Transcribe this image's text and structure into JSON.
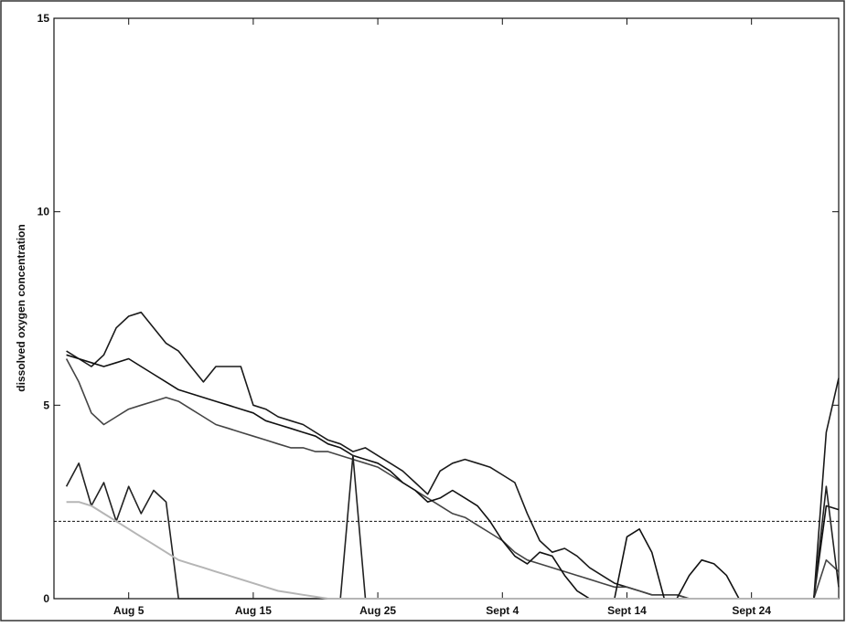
{
  "chart_data": {
    "type": "line",
    "y_label": "dissolved oxygen concentration",
    "x": [
      0,
      1,
      2,
      3,
      4,
      5,
      6,
      7,
      8,
      9,
      10,
      11,
      12,
      13,
      14,
      15,
      16,
      17,
      18,
      19,
      20,
      21,
      22,
      23,
      24,
      25,
      26,
      27,
      28,
      29,
      30,
      31,
      32,
      33,
      34,
      35,
      36,
      37,
      38,
      39,
      40,
      41,
      42,
      43,
      44,
      45,
      46,
      47,
      48,
      49,
      50,
      51,
      52,
      53,
      54,
      55,
      56,
      57,
      58,
      59,
      60,
      61,
      62
    ],
    "series": [
      {
        "color": "#1a1a1a",
        "values": [
          6.4,
          6.2,
          6.0,
          6.3,
          7.0,
          7.3,
          7.4,
          7.0,
          6.6,
          6.4,
          6.0,
          5.6,
          6.0,
          6.0,
          6.0,
          5.0,
          4.9,
          4.7,
          4.6,
          4.5,
          4.3,
          4.1,
          4.0,
          3.8,
          3.9,
          3.7,
          3.5,
          3.3,
          3.0,
          2.7,
          3.3,
          3.5,
          3.6,
          3.5,
          3.4,
          3.2,
          3.0,
          2.2,
          1.5,
          1.2,
          1.3,
          1.1,
          0.8,
          0.6,
          0.4,
          0.3,
          0.2,
          0.1,
          0.1,
          0.1,
          0,
          0,
          0,
          0,
          0,
          0,
          0,
          0,
          0,
          0,
          0,
          4.3,
          5.7
        ]
      },
      {
        "color": "#444444",
        "values": [
          6.2,
          5.6,
          4.8,
          4.5,
          4.7,
          4.9,
          5.0,
          5.1,
          5.2,
          5.1,
          4.9,
          4.7,
          4.5,
          4.4,
          4.3,
          4.2,
          4.1,
          4.0,
          3.9,
          3.9,
          3.8,
          3.8,
          3.7,
          3.6,
          3.5,
          3.4,
          3.2,
          3.0,
          2.8,
          2.6,
          2.4,
          2.2,
          2.1,
          1.9,
          1.7,
          1.5,
          1.2,
          1.0,
          0.9,
          0.8,
          0.7,
          0.6,
          0.5,
          0.4,
          0.3,
          0.3,
          0.2,
          0.1,
          0.1,
          0.1,
          0,
          0,
          0,
          0,
          0,
          0,
          0,
          0,
          0,
          0,
          0,
          1.0,
          0.7
        ]
      },
      {
        "color": "#111111",
        "values": [
          6.3,
          6.2,
          6.1,
          6.0,
          6.1,
          6.2,
          6.0,
          5.8,
          5.6,
          5.4,
          5.3,
          5.2,
          5.1,
          5.0,
          4.9,
          4.8,
          4.6,
          4.5,
          4.4,
          4.3,
          4.2,
          4.0,
          3.9,
          3.7,
          3.6,
          3.5,
          3.3,
          3.0,
          2.8,
          2.5,
          2.6,
          2.8,
          2.6,
          2.4,
          2.0,
          1.5,
          1.1,
          0.9,
          1.2,
          1.1,
          0.6,
          0.2,
          0,
          0,
          0,
          1.6,
          1.8,
          1.2,
          0,
          0,
          0.6,
          1.0,
          0.9,
          0.6,
          0,
          0,
          0,
          0,
          0,
          0,
          0,
          2.4,
          2.3
        ]
      },
      {
        "color": "#222222",
        "values": [
          2.9,
          3.5,
          2.4,
          3.0,
          2.0,
          2.9,
          2.2,
          2.8,
          2.5,
          0,
          0,
          0,
          0,
          0,
          0,
          0,
          0,
          0,
          0,
          0,
          0,
          0,
          0,
          3.7,
          0,
          0,
          0,
          0,
          0,
          0,
          0,
          0,
          0,
          0,
          0,
          0,
          0,
          0,
          0,
          0,
          0,
          0,
          0,
          0,
          0,
          0,
          0,
          0,
          0,
          0,
          0,
          0,
          0,
          0,
          0,
          0,
          0,
          0,
          0,
          0,
          0,
          2.9,
          0.3
        ]
      },
      {
        "color": "#b5b5b5",
        "values": [
          2.5,
          2.5,
          2.4,
          2.2,
          2.0,
          1.8,
          1.6,
          1.4,
          1.2,
          1.0,
          0.9,
          0.8,
          0.7,
          0.6,
          0.5,
          0.4,
          0.3,
          0.2,
          0.15,
          0.1,
          0.05,
          0,
          0,
          0,
          0,
          0,
          0,
          0,
          0,
          0,
          0,
          0,
          0,
          0,
          0,
          0,
          0,
          0,
          0,
          0,
          0,
          0,
          0,
          0,
          0,
          0,
          0,
          0,
          0,
          0,
          0,
          0,
          0,
          0,
          0,
          0,
          0,
          0,
          0,
          0,
          0,
          0,
          0
        ]
      }
    ],
    "hline": 2,
    "xlim": [
      -1,
      62
    ],
    "xticks": [
      {
        "value": 5,
        "label": "Aug 5"
      },
      {
        "value": 15,
        "label": "Aug 15"
      },
      {
        "value": 25,
        "label": "Aug 25"
      },
      {
        "value": 35,
        "label": "Sept 4"
      },
      {
        "value": 45,
        "label": "Sept 14"
      },
      {
        "value": 55,
        "label": "Sept 24"
      }
    ],
    "ylim": [
      0,
      15
    ],
    "yticks": [
      0,
      5,
      10,
      15
    ]
  }
}
